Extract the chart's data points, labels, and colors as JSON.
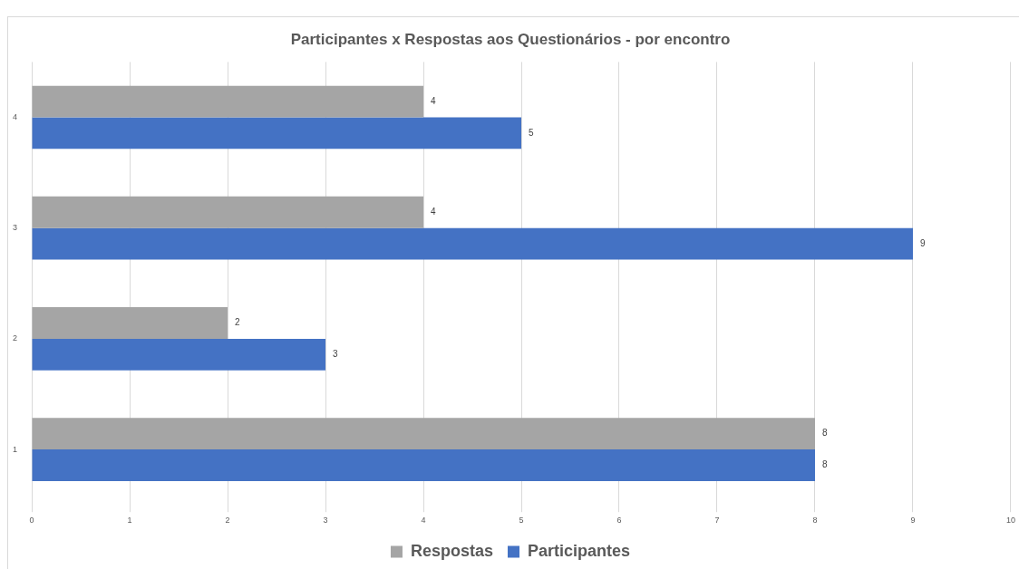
{
  "chart_data": {
    "type": "bar",
    "orientation": "horizontal",
    "title": "Participantes x Respostas aos Questionários - por encontro",
    "categories": [
      "4",
      "3",
      "2",
      "1"
    ],
    "series": [
      {
        "name": "Respostas",
        "color": "#a5a5a5",
        "values": [
          4,
          4,
          2,
          8
        ]
      },
      {
        "name": "Participantes",
        "color": "#4472c4",
        "values": [
          5,
          9,
          3,
          8
        ]
      }
    ],
    "xlim": [
      0,
      10
    ],
    "xticks": [
      0,
      1,
      2,
      3,
      4,
      5,
      6,
      7,
      8,
      9,
      10
    ],
    "grid": "x",
    "legend": "bottom",
    "data_labels": true
  }
}
